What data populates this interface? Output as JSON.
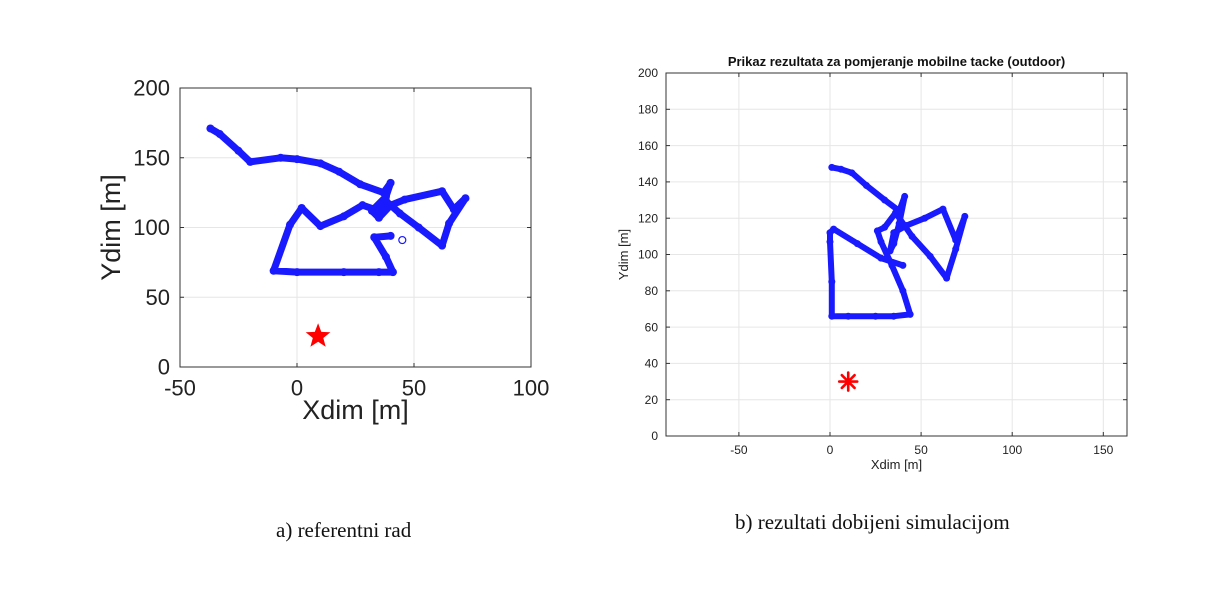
{
  "captions": {
    "a": "a) referentni rad",
    "b": "b) rezultati dobijeni simulacijom"
  },
  "chart_data": [
    {
      "type": "scatter",
      "title": "",
      "xlabel": "Xdim [m]",
      "ylabel": "Ydim [m]",
      "xlim": [
        -50,
        100
      ],
      "ylim": [
        0,
        200
      ],
      "xticks": [
        -50,
        0,
        50,
        100
      ],
      "yticks": [
        0,
        50,
        100,
        150,
        200
      ],
      "grid": true,
      "colors": {
        "path": "#1a1aff",
        "target": "#ff0000",
        "axis": "#333333",
        "grid": "#e6e6e6"
      },
      "path": [
        [
          -37,
          171
        ],
        [
          -33,
          167
        ],
        [
          -25,
          155
        ],
        [
          -20,
          147
        ],
        [
          -7,
          150
        ],
        [
          0,
          149
        ],
        [
          10,
          146
        ],
        [
          18,
          140
        ],
        [
          27,
          131
        ],
        [
          37,
          125
        ],
        [
          40,
          132
        ],
        [
          38,
          122
        ],
        [
          32,
          112
        ],
        [
          35,
          107
        ],
        [
          40,
          116
        ],
        [
          46,
          120
        ],
        [
          62,
          126
        ],
        [
          67,
          113
        ],
        [
          72,
          121
        ],
        [
          65,
          103
        ],
        [
          62,
          87
        ],
        [
          52,
          100
        ],
        [
          44,
          110
        ],
        [
          38,
          119
        ],
        [
          35,
          112
        ],
        [
          28,
          116
        ],
        [
          20,
          108
        ],
        [
          10,
          101
        ],
        [
          2,
          114
        ],
        [
          -3,
          102
        ],
        [
          -10,
          69
        ],
        [
          0,
          68
        ],
        [
          20,
          68
        ],
        [
          35,
          68
        ],
        [
          41,
          68
        ],
        [
          38,
          79
        ],
        [
          33,
          93
        ],
        [
          40,
          94
        ]
      ],
      "markers": [
        {
          "label": "target",
          "symbol": "star",
          "x": 9,
          "y": 22,
          "color": "#ff0000"
        },
        {
          "label": "point",
          "symbol": "circle",
          "x": 45,
          "y": 91,
          "color": "#1a1aff"
        }
      ]
    },
    {
      "type": "scatter",
      "title": "Prikaz rezultata za pomjeranje mobilne tacke (outdoor)",
      "xlabel": "Xdim [m]",
      "ylabel": "Ydim [m]",
      "xlim": [
        -90,
        163
      ],
      "ylim": [
        0,
        200
      ],
      "xticks": [
        -50,
        0,
        50,
        100,
        150
      ],
      "yticks": [
        0,
        20,
        40,
        60,
        80,
        100,
        120,
        140,
        160,
        180,
        200
      ],
      "grid": true,
      "colors": {
        "path": "#1a1aff",
        "target": "#ff0000",
        "axis": "#333333",
        "grid": "#e6e6e6"
      },
      "path": [
        [
          1,
          148
        ],
        [
          6,
          147
        ],
        [
          12,
          145
        ],
        [
          20,
          138
        ],
        [
          30,
          130
        ],
        [
          38,
          124
        ],
        [
          41,
          132
        ],
        [
          38,
          117
        ],
        [
          35,
          106
        ],
        [
          33,
          102
        ],
        [
          35,
          112
        ],
        [
          42,
          116
        ],
        [
          52,
          120
        ],
        [
          62,
          125
        ],
        [
          69,
          108
        ],
        [
          74,
          121
        ],
        [
          69,
          103
        ],
        [
          64,
          87
        ],
        [
          55,
          99
        ],
        [
          45,
          110
        ],
        [
          36,
          123
        ],
        [
          30,
          115
        ],
        [
          26,
          113
        ],
        [
          28,
          107
        ],
        [
          34,
          94
        ],
        [
          40,
          80
        ],
        [
          44,
          67
        ],
        [
          35,
          66
        ],
        [
          25,
          66
        ],
        [
          10,
          66
        ],
        [
          1,
          66
        ],
        [
          1,
          85
        ],
        [
          0,
          107
        ],
        [
          0,
          112
        ],
        [
          2,
          114
        ],
        [
          15,
          106
        ],
        [
          28,
          98
        ],
        [
          40,
          94
        ]
      ],
      "markers": [
        {
          "label": "target",
          "symbol": "asterisk",
          "x": 10,
          "y": 30,
          "color": "#ff0000"
        }
      ]
    }
  ]
}
